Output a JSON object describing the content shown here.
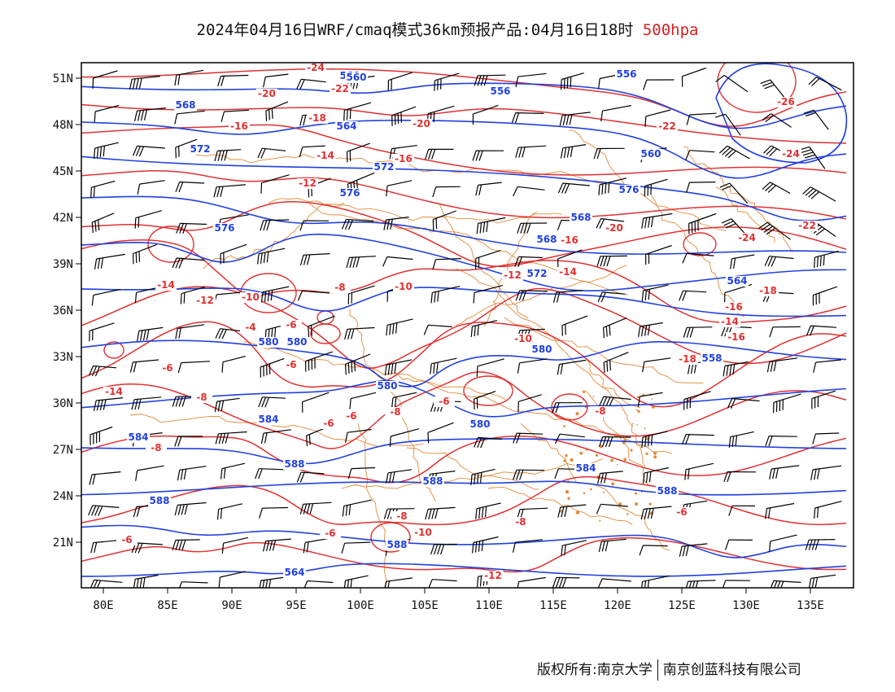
{
  "title": {
    "main": "2024年04月16日WRF/cmaq模式36km预报产品:04月16日18时",
    "level": "500hpa",
    "level_color": "#e03030"
  },
  "axes": {
    "lon_labels": [
      "80E",
      "85E",
      "90E",
      "95E",
      "100E",
      "105E",
      "110E",
      "115E",
      "120E",
      "125E",
      "130E",
      "135E"
    ],
    "lat_labels": [
      "51N",
      "48N",
      "45N",
      "42N",
      "39N",
      "36N",
      "33N",
      "30N",
      "27N",
      "24N",
      "21N"
    ]
  },
  "colors": {
    "height_contour": "#2040e0",
    "temperature_contour": "#e03030",
    "boundary": "#e08a3a",
    "wind_barb": "#000000"
  },
  "height_labels": [
    "560",
    "568",
    "560",
    "564",
    "572",
    "572",
    "576",
    "576",
    "580",
    "580",
    "580",
    "584",
    "584",
    "588",
    "588",
    "588",
    "588",
    "564",
    "576",
    "572",
    "568",
    "580",
    "584",
    "588",
    "580",
    "556",
    "556",
    "560",
    "568",
    "564",
    "558"
  ],
  "temp_labels": [
    "-24",
    "-22",
    "-20",
    "-20",
    "-18",
    "-16",
    "-14",
    "-16",
    "-12",
    "-16",
    "-14",
    "-12",
    "-10",
    "-8",
    "-10",
    "-4",
    "-6",
    "-6",
    "-6",
    "-8",
    "-6",
    "-6",
    "-8",
    "-6",
    "-8",
    "-8",
    "-6",
    "-6",
    "-10",
    "-18",
    "-16",
    "-14",
    "-22",
    "-24",
    "-26",
    "-22",
    "-24",
    "-20",
    "-18",
    "-16",
    "-14",
    "-12",
    "-10",
    "-8",
    "-6",
    "-8",
    "-12",
    "-14"
  ],
  "footer": {
    "left": "版权所有:南京大学",
    "right": "南京创蓝科技有限公司"
  }
}
